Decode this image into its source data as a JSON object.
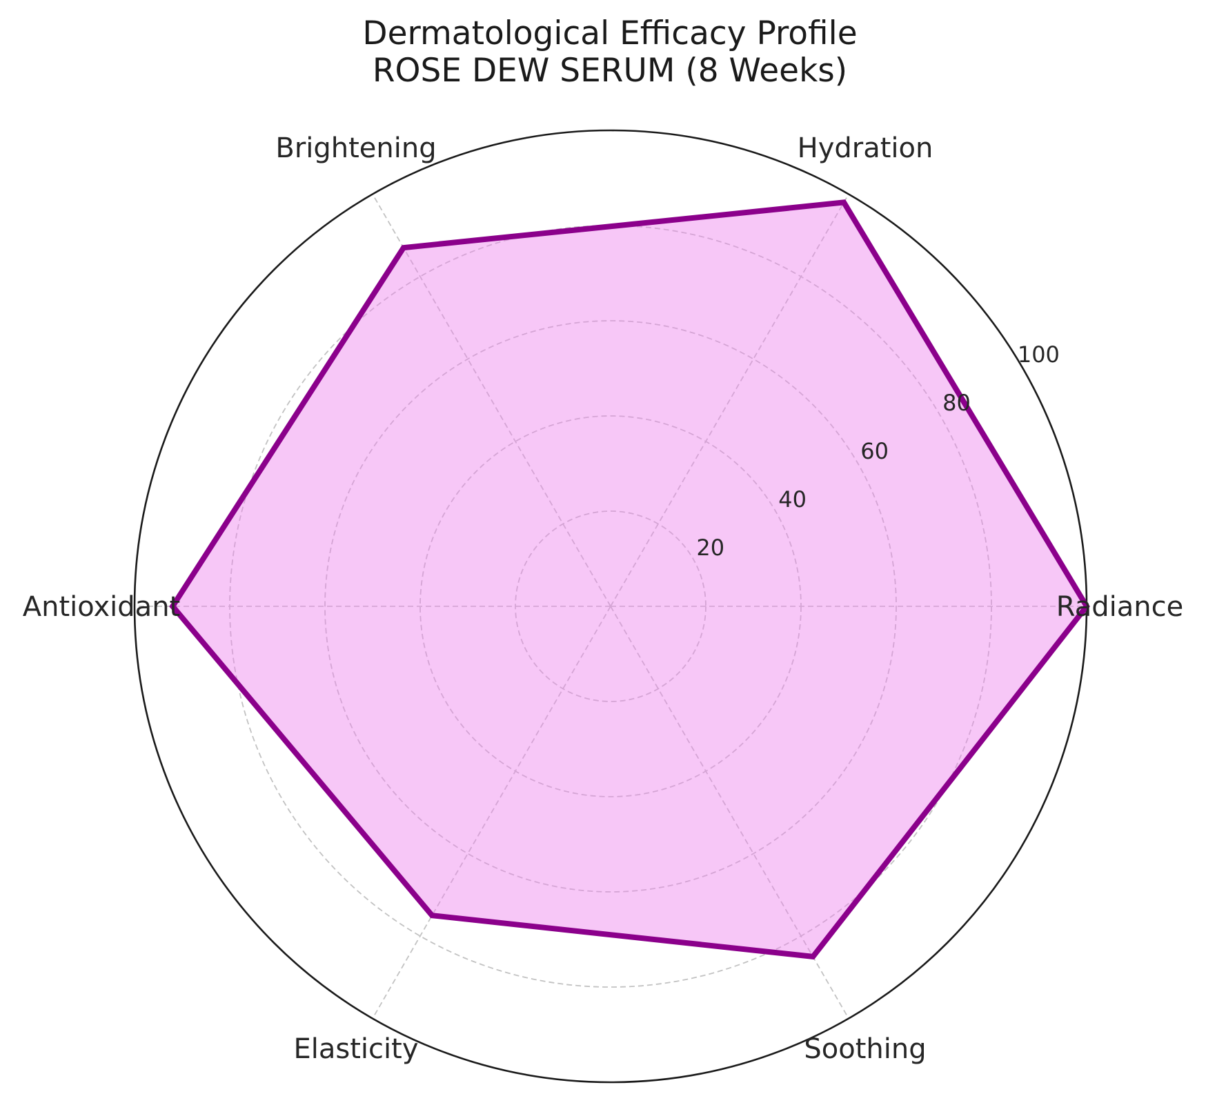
{
  "figure": {
    "title_line1": "Dermatological Efficacy Profile",
    "title_line2": "ROSE DEW SERUM (8 Weeks)"
  },
  "chart_data": {
    "type": "radar",
    "title": "Dermatological Efficacy Profile — ROSE DEW SERUM (8 Weeks)",
    "categories": [
      "Radiance",
      "Hydration",
      "Brightening",
      "Antioxidant",
      "Elasticity",
      "Soothing"
    ],
    "values": [
      100,
      98,
      87,
      92,
      75,
      85
    ],
    "axis_angles_deg": [
      0,
      60,
      120,
      180,
      240,
      300
    ],
    "radial_ticks": [
      20,
      40,
      60,
      80,
      100
    ],
    "radial_tick_labels": [
      "20",
      "40",
      "60",
      "80",
      "100"
    ],
    "r_range": [
      0,
      100
    ],
    "tick_label_angle_deg": 30.5,
    "grid": {
      "circles": "dashed",
      "spokes": "dashed",
      "outer_ring": "solid"
    },
    "legend": "none",
    "colors": {
      "fill": "#EE82EE",
      "fill_opacity": 0.45,
      "stroke": "#8B008B",
      "grid": "#c2c2c2",
      "spine": "#1a1a1a",
      "text": "#262626"
    }
  }
}
